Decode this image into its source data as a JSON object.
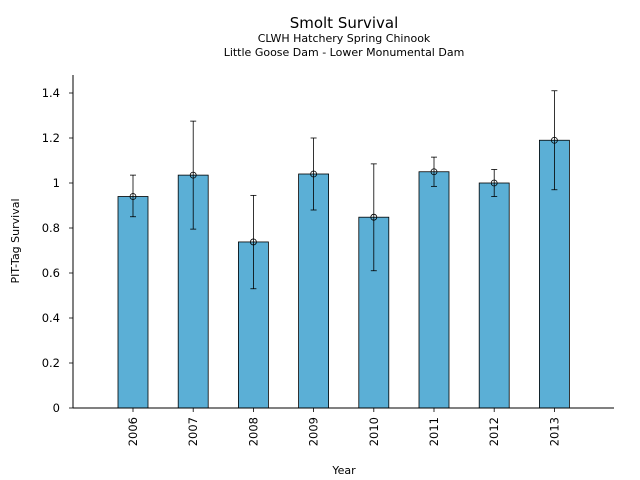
{
  "chart_data": {
    "type": "bar",
    "title": "Smolt Survival",
    "subtitle_lines": [
      "CLWH Hatchery Spring Chinook",
      "Little Goose Dam - Lower Monumental Dam"
    ],
    "xlabel": "Year",
    "ylabel": "PIT-Tag Survival",
    "categories": [
      "2006",
      "2007",
      "2008",
      "2009",
      "2010",
      "2011",
      "2012",
      "2013"
    ],
    "values": [
      0.94,
      1.035,
      0.738,
      1.04,
      0.848,
      1.05,
      1.0,
      1.19
    ],
    "error_low": [
      0.85,
      0.795,
      0.53,
      0.88,
      0.61,
      0.985,
      0.94,
      0.97
    ],
    "error_high": [
      1.035,
      1.275,
      0.945,
      1.2,
      1.085,
      1.115,
      1.06,
      1.41
    ],
    "ylim": [
      0,
      1.48
    ],
    "yticks": [
      0,
      0.2,
      0.4,
      0.6,
      0.8,
      1,
      1.2,
      1.4
    ],
    "ytick_labels": [
      "0",
      "0.2",
      "0.4",
      "0.6",
      "0.8",
      "1",
      "1.2",
      "1.4"
    ],
    "bar_color": "#5bafd6",
    "grid": false,
    "legend": "none"
  }
}
